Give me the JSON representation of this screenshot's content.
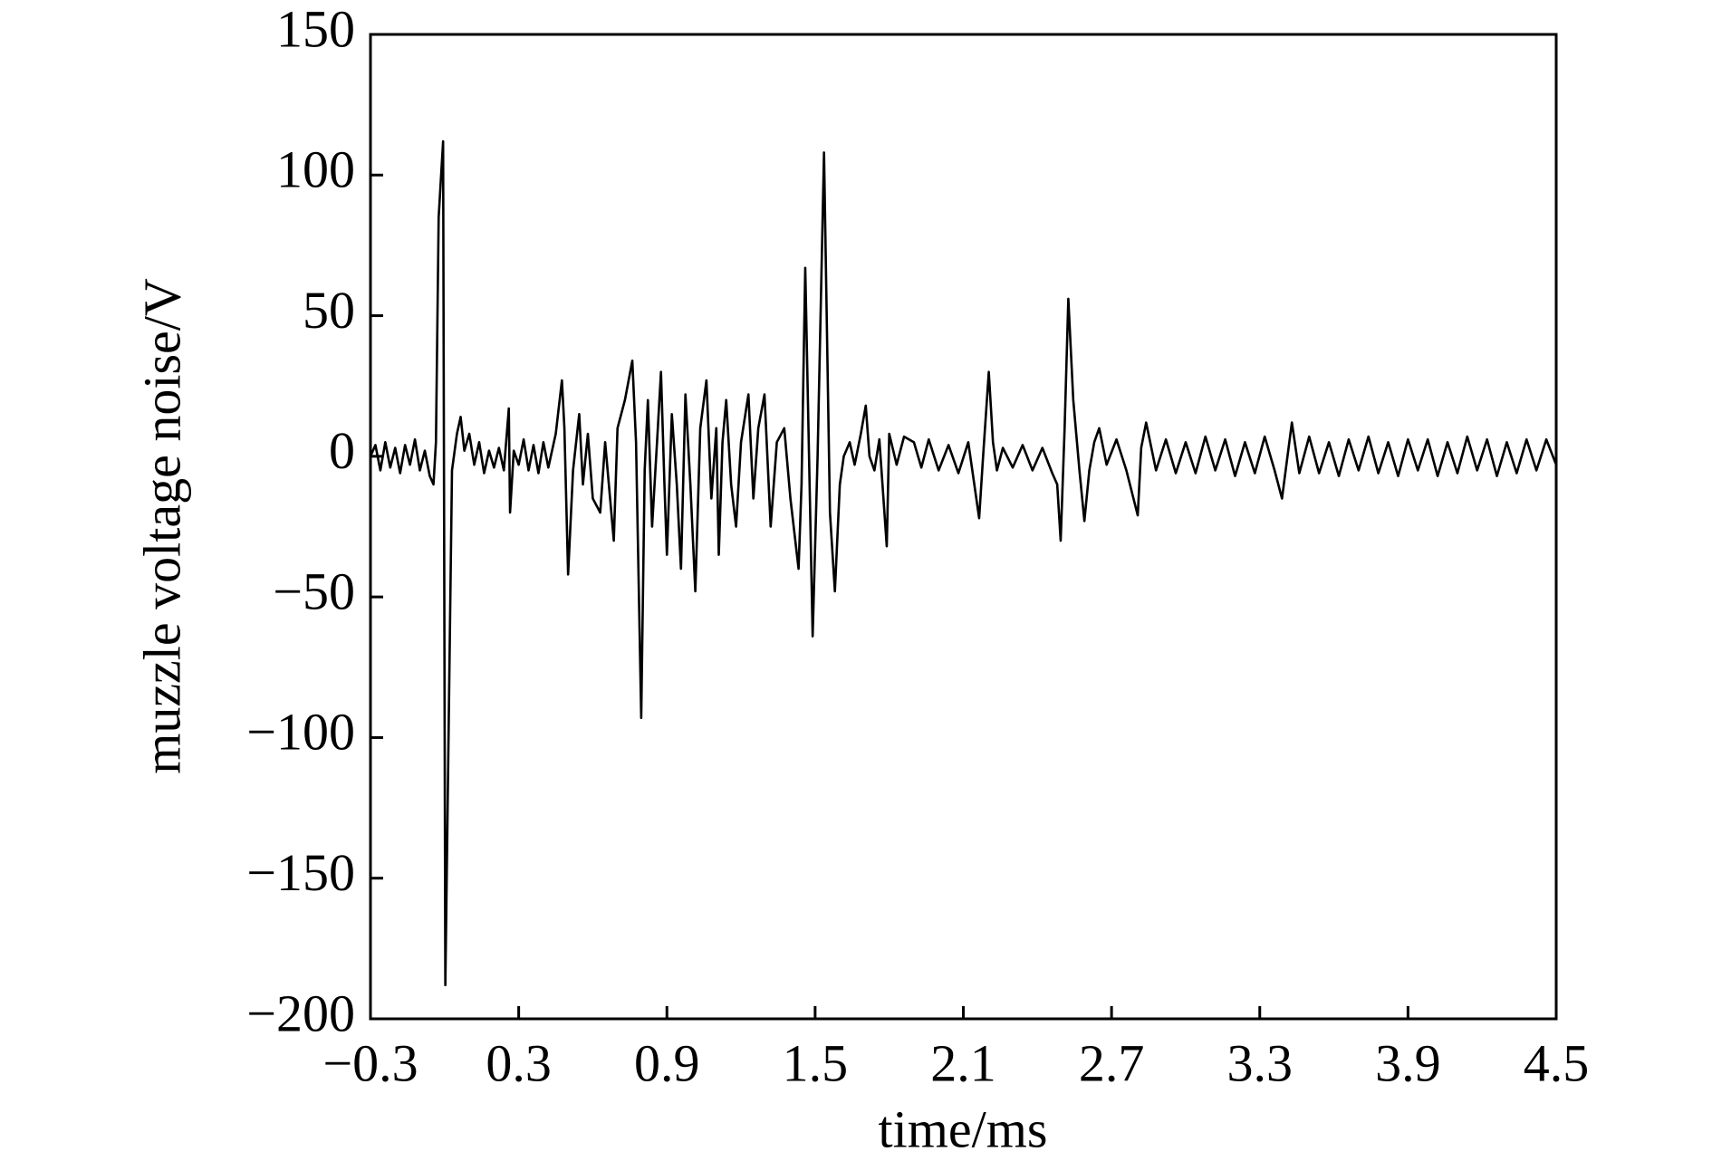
{
  "chart_data": {
    "type": "line",
    "xlabel": "time/ms",
    "ylabel": "muzzle voltage noise/V",
    "xlim": [
      -0.3,
      4.5
    ],
    "ylim": [
      -200,
      150
    ],
    "xticks": [
      {
        "value": -0.3,
        "label": "−0.3"
      },
      0.3,
      0.9,
      1.5,
      2.1,
      2.7,
      3.3,
      3.9,
      4.5
    ],
    "yticks": [
      {
        "value": -200,
        "label": "−200"
      },
      {
        "value": -150,
        "label": "−150"
      },
      {
        "value": -100,
        "label": "−100"
      },
      {
        "value": -50,
        "label": "−50"
      },
      0,
      50,
      100,
      150
    ],
    "series": [
      {
        "color": "#000000",
        "x": [
          -0.3,
          -0.28,
          -0.26,
          -0.24,
          -0.22,
          -0.2,
          -0.18,
          -0.16,
          -0.14,
          -0.12,
          -0.1,
          -0.08,
          -0.06,
          -0.045,
          -0.035,
          -0.024,
          -0.006,
          0.003,
          0.03,
          0.05,
          0.065,
          0.08,
          0.1,
          0.12,
          0.14,
          0.16,
          0.18,
          0.2,
          0.22,
          0.24,
          0.26,
          0.265,
          0.28,
          0.3,
          0.32,
          0.34,
          0.36,
          0.38,
          0.4,
          0.42,
          0.45,
          0.475,
          0.485,
          0.5,
          0.52,
          0.545,
          0.56,
          0.58,
          0.6,
          0.63,
          0.65,
          0.685,
          0.7,
          0.73,
          0.76,
          0.775,
          0.796,
          0.81,
          0.823,
          0.84,
          0.86,
          0.876,
          0.89,
          0.9,
          0.92,
          0.94,
          0.957,
          0.975,
          0.995,
          1.015,
          1.035,
          1.06,
          1.08,
          1.1,
          1.11,
          1.125,
          1.14,
          1.16,
          1.18,
          1.2,
          1.23,
          1.25,
          1.27,
          1.295,
          1.32,
          1.345,
          1.375,
          1.4,
          1.433,
          1.445,
          1.46,
          1.49,
          1.51,
          1.536,
          1.56,
          1.58,
          1.6,
          1.616,
          1.64,
          1.66,
          1.685,
          1.705,
          1.72,
          1.74,
          1.76,
          1.79,
          1.8,
          1.83,
          1.86,
          1.9,
          1.93,
          1.96,
          2.0,
          2.04,
          2.08,
          2.12,
          2.164,
          2.18,
          2.203,
          2.22,
          2.236,
          2.26,
          2.3,
          2.34,
          2.38,
          2.42,
          2.46,
          2.48,
          2.494,
          2.51,
          2.525,
          2.545,
          2.57,
          2.59,
          2.61,
          2.63,
          2.65,
          2.68,
          2.72,
          2.76,
          2.806,
          2.82,
          2.84,
          2.88,
          2.92,
          2.96,
          3.0,
          3.04,
          3.08,
          3.12,
          3.16,
          3.2,
          3.24,
          3.28,
          3.32,
          3.36,
          3.39,
          3.43,
          3.46,
          3.5,
          3.54,
          3.58,
          3.62,
          3.66,
          3.7,
          3.74,
          3.78,
          3.82,
          3.86,
          3.9,
          3.94,
          3.98,
          4.02,
          4.06,
          4.1,
          4.14,
          4.18,
          4.22,
          4.26,
          4.3,
          4.34,
          4.38,
          4.42,
          4.46,
          4.5
        ],
        "values": [
          0,
          4,
          -5,
          5,
          -4,
          3,
          -6,
          4,
          -3,
          6,
          -5,
          2,
          -7,
          -10,
          5,
          85,
          112,
          -188,
          -5,
          8,
          14,
          2,
          8,
          -3,
          5,
          -6,
          2,
          -4,
          3,
          -5,
          17,
          -20,
          2,
          -3,
          6,
          -5,
          4,
          -6,
          5,
          -4,
          8,
          27,
          10,
          -42,
          -5,
          15,
          -10,
          8,
          -15,
          -20,
          5,
          -30,
          10,
          20,
          34,
          5,
          -93,
          -5,
          20,
          -25,
          5,
          30,
          -10,
          -35,
          15,
          -10,
          -40,
          22,
          -10,
          -48,
          10,
          27,
          -15,
          10,
          -35,
          5,
          20,
          -10,
          -25,
          5,
          22,
          -15,
          10,
          22,
          -25,
          5,
          10,
          -15,
          -40,
          -10,
          67,
          -64,
          0,
          108,
          -20,
          -48,
          -10,
          0,
          5,
          -3,
          8,
          18,
          0,
          -5,
          6,
          -32,
          8,
          -3,
          7,
          5,
          -4,
          6,
          -5,
          4,
          -6,
          5,
          -22,
          0,
          30,
          5,
          -5,
          3,
          -4,
          4,
          -5,
          3,
          -6,
          -10,
          -30,
          10,
          56,
          20,
          -5,
          -23,
          -5,
          5,
          10,
          -3,
          6,
          -5,
          -21,
          3,
          12,
          -5,
          6,
          -6,
          5,
          -6,
          7,
          -5,
          6,
          -7,
          5,
          -6,
          7,
          -5,
          -15,
          12,
          -6,
          7,
          -6,
          5,
          -7,
          6,
          -5,
          7,
          -6,
          5,
          -7,
          6,
          -5,
          6,
          -7,
          5,
          -6,
          7,
          -5,
          6,
          -7,
          5,
          -6,
          6,
          -5,
          6,
          -3
        ]
      }
    ]
  }
}
